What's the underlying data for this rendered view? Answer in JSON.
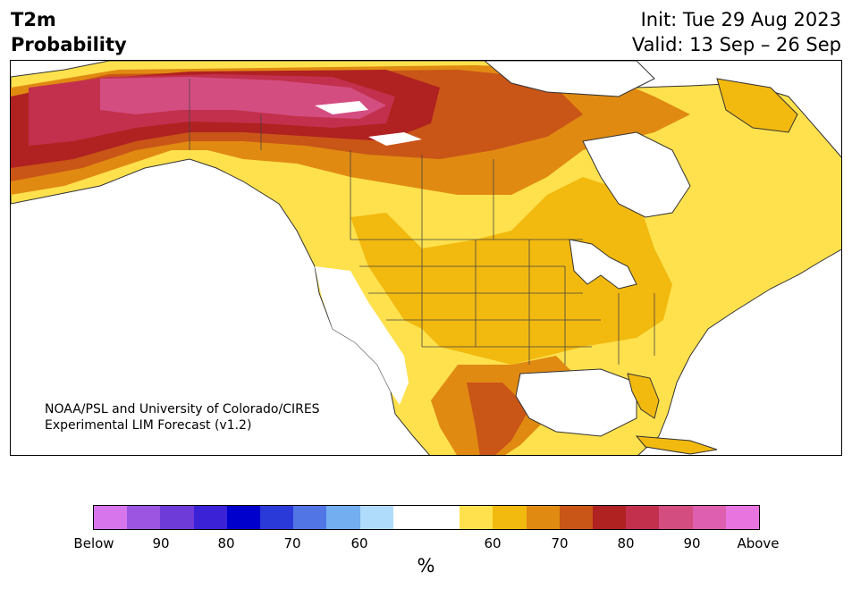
{
  "header": {
    "title_line1": "T2m",
    "title_line2": "Probability",
    "init": "Init: Tue 29 Aug 2023",
    "valid": "Valid: 13 Sep – 26 Sep"
  },
  "map": {
    "credit_line1": "NOAA/PSL and University of Colorado/CIRES",
    "credit_line2": "Experimental LIM Forecast (v1.2)",
    "region": "North America",
    "colors": {
      "neutral": "#ffffff",
      "above_50_60": "#ffe14d",
      "above_60_65": "#f2b90f",
      "above_65_70": "#e08a12",
      "above_70_75": "#c95517",
      "above_75_80": "#b02121",
      "above_80_85": "#c2304d",
      "above_85_90": "#d44d80",
      "coastline": "#333333"
    }
  },
  "colorbar": {
    "colors": [
      "#d675ec",
      "#9b55e0",
      "#6f3bd8",
      "#3b22d6",
      "#0000cc",
      "#2a3ad8",
      "#5275e6",
      "#73aef0",
      "#aedcfa",
      "#ffffff",
      "#ffffff",
      "#ffe14d",
      "#f2b90f",
      "#e08a12",
      "#c95517",
      "#b02121",
      "#c2304d",
      "#d44d80",
      "#de5fb0",
      "#e875df"
    ],
    "tick_labels": [
      "Below",
      "90",
      "80",
      "70",
      "60",
      "60",
      "70",
      "80",
      "90",
      "Above"
    ],
    "unit": "%"
  }
}
